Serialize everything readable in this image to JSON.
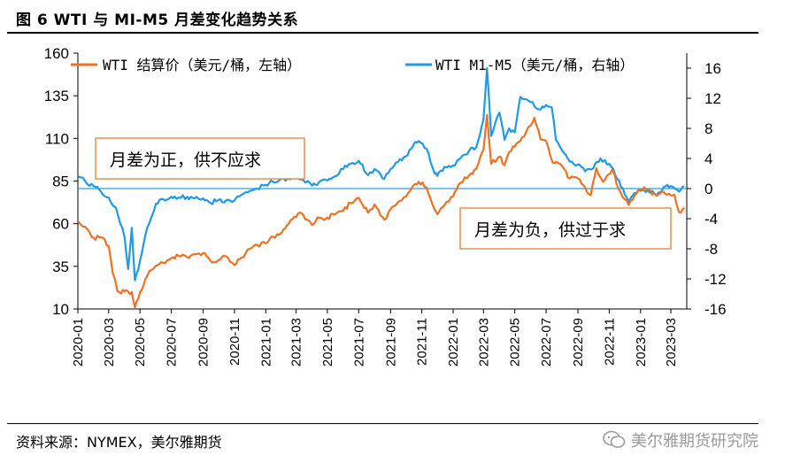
{
  "figure_title": "图 6   WTI 与 MI-M5 月差变化趋势关系",
  "source": "资料来源：NYMEX，美尔雅期货",
  "watermark": "美尔雅期货研究院",
  "colors": {
    "wti": "#f07122",
    "spread": "#1f9ae6",
    "zero_line": "#29a3e0",
    "annotation_border": "#e8914f"
  },
  "annotations": {
    "positive": "月差为正，供不应求",
    "negative": "月差为负，供过于求"
  },
  "chart_data": {
    "type": "line",
    "x_range": [
      "2020-01",
      "2023-04"
    ],
    "x_ticks": [
      "2020-01",
      "2020-03",
      "2020-05",
      "2020-07",
      "2020-09",
      "2020-11",
      "2021-01",
      "2021-03",
      "2021-05",
      "2021-07",
      "2021-09",
      "2021-11",
      "2022-01",
      "2022-03",
      "2022-05",
      "2022-07",
      "2022-09",
      "2022-11",
      "2023-01",
      "2023-03"
    ],
    "y_left": {
      "label": "WTI 结算价（美元/桶，左轴）",
      "range": [
        10,
        160
      ],
      "ticks": [
        10,
        35,
        60,
        85,
        110,
        135,
        160
      ]
    },
    "y_right": {
      "label": "WTI M1-M5（美元/桶，右轴）",
      "range": [
        -16,
        18
      ],
      "ticks": [
        -16,
        -12,
        -8,
        -4,
        0,
        4,
        8,
        12,
        16
      ]
    },
    "series": [
      {
        "name": "WTI 结算价（美元/桶，左轴）",
        "axis": "left",
        "points": [
          [
            "2020-01-02",
            61.2
          ],
          [
            "2020-01-15",
            58.2
          ],
          [
            "2020-02-01",
            51.6
          ],
          [
            "2020-02-15",
            52.1
          ],
          [
            "2020-03-01",
            47.0
          ],
          [
            "2020-03-09",
            31.1
          ],
          [
            "2020-03-18",
            20.4
          ],
          [
            "2020-04-01",
            20.3
          ],
          [
            "2020-04-15",
            19.9
          ],
          [
            "2020-04-21",
            11.0
          ],
          [
            "2020-05-01",
            19.8
          ],
          [
            "2020-05-15",
            29.4
          ],
          [
            "2020-06-01",
            35.4
          ],
          [
            "2020-06-15",
            37.1
          ],
          [
            "2020-07-01",
            39.8
          ],
          [
            "2020-07-15",
            41.2
          ],
          [
            "2020-08-01",
            40.3
          ],
          [
            "2020-08-15",
            42.0
          ],
          [
            "2020-09-01",
            42.8
          ],
          [
            "2020-09-15",
            38.3
          ],
          [
            "2020-10-01",
            38.7
          ],
          [
            "2020-10-15",
            40.9
          ],
          [
            "2020-11-01",
            35.8
          ],
          [
            "2020-11-15",
            40.1
          ],
          [
            "2020-12-01",
            45.3
          ],
          [
            "2020-12-15",
            47.6
          ],
          [
            "2021-01-01",
            48.5
          ],
          [
            "2021-01-15",
            52.4
          ],
          [
            "2021-02-01",
            54.8
          ],
          [
            "2021-02-15",
            60.1
          ],
          [
            "2021-03-05",
            66.1
          ],
          [
            "2021-03-15",
            65.0
          ],
          [
            "2021-04-01",
            59.3
          ],
          [
            "2021-04-15",
            63.5
          ],
          [
            "2021-05-01",
            63.6
          ],
          [
            "2021-05-15",
            65.4
          ],
          [
            "2021-06-01",
            67.7
          ],
          [
            "2021-06-15",
            72.1
          ],
          [
            "2021-07-01",
            75.2
          ],
          [
            "2021-07-19",
            66.4
          ],
          [
            "2021-08-01",
            71.3
          ],
          [
            "2021-08-20",
            62.3
          ],
          [
            "2021-09-01",
            68.6
          ],
          [
            "2021-09-15",
            72.6
          ],
          [
            "2021-10-01",
            75.9
          ],
          [
            "2021-10-15",
            82.3
          ],
          [
            "2021-10-26",
            84.6
          ],
          [
            "2021-11-10",
            81.3
          ],
          [
            "2021-11-26",
            68.2
          ],
          [
            "2021-12-01",
            65.6
          ],
          [
            "2021-12-15",
            70.9
          ],
          [
            "2022-01-01",
            76.1
          ],
          [
            "2022-01-15",
            84.0
          ],
          [
            "2022-02-01",
            88.2
          ],
          [
            "2022-02-15",
            92.1
          ],
          [
            "2022-03-01",
            103.4
          ],
          [
            "2022-03-08",
            123.7
          ],
          [
            "2022-03-16",
            95.0
          ],
          [
            "2022-04-01",
            99.3
          ],
          [
            "2022-04-11",
            94.3
          ],
          [
            "2022-04-20",
            102.0
          ],
          [
            "2022-05-01",
            105.2
          ],
          [
            "2022-05-15",
            110.5
          ],
          [
            "2022-06-08",
            122.1
          ],
          [
            "2022-06-20",
            109.6
          ],
          [
            "2022-07-01",
            108.4
          ],
          [
            "2022-07-14",
            95.8
          ],
          [
            "2022-08-01",
            93.9
          ],
          [
            "2022-08-16",
            86.5
          ],
          [
            "2022-09-01",
            86.6
          ],
          [
            "2022-09-26",
            76.7
          ],
          [
            "2022-10-07",
            92.6
          ],
          [
            "2022-10-20",
            84.5
          ],
          [
            "2022-11-07",
            91.8
          ],
          [
            "2022-11-20",
            80.1
          ],
          [
            "2022-12-09",
            71.0
          ],
          [
            "2022-12-20",
            76.2
          ],
          [
            "2023-01-01",
            80.3
          ],
          [
            "2023-01-15",
            79.9
          ],
          [
            "2023-02-01",
            76.4
          ],
          [
            "2023-02-15",
            78.6
          ],
          [
            "2023-03-08",
            77.0
          ],
          [
            "2023-03-17",
            66.7
          ],
          [
            "2023-03-27",
            69.3
          ]
        ]
      },
      {
        "name": "WTI M1-M5（美元/桶，右轴）",
        "axis": "right",
        "points": [
          [
            "2020-01-02",
            1.6
          ],
          [
            "2020-01-15",
            1.0
          ],
          [
            "2020-02-01",
            0.3
          ],
          [
            "2020-02-15",
            -0.4
          ],
          [
            "2020-03-01",
            -1.2
          ],
          [
            "2020-03-15",
            -2.5
          ],
          [
            "2020-04-01",
            -6.5
          ],
          [
            "2020-04-08",
            -10.7
          ],
          [
            "2020-04-15",
            -5.2
          ],
          [
            "2020-04-21",
            -12.2
          ],
          [
            "2020-05-01",
            -9.6
          ],
          [
            "2020-05-15",
            -5.2
          ],
          [
            "2020-06-01",
            -2.0
          ],
          [
            "2020-06-15",
            -1.4
          ],
          [
            "2020-07-01",
            -1.1
          ],
          [
            "2020-07-15",
            -1.2
          ],
          [
            "2020-08-01",
            -1.1
          ],
          [
            "2020-08-15",
            -1.3
          ],
          [
            "2020-09-01",
            -1.3
          ],
          [
            "2020-09-15",
            -1.9
          ],
          [
            "2020-10-01",
            -1.5
          ],
          [
            "2020-10-15",
            -1.6
          ],
          [
            "2020-11-01",
            -1.6
          ],
          [
            "2020-11-15",
            -0.8
          ],
          [
            "2020-12-01",
            -0.3
          ],
          [
            "2020-12-15",
            0.0
          ],
          [
            "2021-01-01",
            0.5
          ],
          [
            "2021-01-15",
            0.9
          ],
          [
            "2021-02-01",
            1.3
          ],
          [
            "2021-02-15",
            1.3
          ],
          [
            "2021-03-01",
            1.5
          ],
          [
            "2021-03-15",
            1.1
          ],
          [
            "2021-04-01",
            0.4
          ],
          [
            "2021-04-15",
            0.9
          ],
          [
            "2021-05-01",
            1.1
          ],
          [
            "2021-05-15",
            1.6
          ],
          [
            "2021-06-01",
            2.6
          ],
          [
            "2021-06-15",
            3.3
          ],
          [
            "2021-07-01",
            3.7
          ],
          [
            "2021-07-19",
            1.8
          ],
          [
            "2021-08-01",
            2.6
          ],
          [
            "2021-08-20",
            1.3
          ],
          [
            "2021-09-01",
            2.6
          ],
          [
            "2021-09-15",
            3.5
          ],
          [
            "2021-10-01",
            4.3
          ],
          [
            "2021-10-15",
            5.7
          ],
          [
            "2021-10-26",
            6.3
          ],
          [
            "2021-11-10",
            5.3
          ],
          [
            "2021-11-26",
            2.0
          ],
          [
            "2021-12-01",
            1.7
          ],
          [
            "2021-12-15",
            2.9
          ],
          [
            "2022-01-01",
            3.1
          ],
          [
            "2022-01-15",
            4.0
          ],
          [
            "2022-02-01",
            5.0
          ],
          [
            "2022-02-15",
            5.5
          ],
          [
            "2022-03-01",
            9.2
          ],
          [
            "2022-03-08",
            16.0
          ],
          [
            "2022-03-16",
            7.0
          ],
          [
            "2022-04-01",
            10.1
          ],
          [
            "2022-04-11",
            6.5
          ],
          [
            "2022-04-20",
            8.0
          ],
          [
            "2022-05-01",
            7.5
          ],
          [
            "2022-05-12",
            12.2
          ],
          [
            "2022-06-01",
            11.5
          ],
          [
            "2022-06-20",
            10.5
          ],
          [
            "2022-07-01",
            11.1
          ],
          [
            "2022-07-12",
            10.8
          ],
          [
            "2022-07-20",
            6.5
          ],
          [
            "2022-08-01",
            5.1
          ],
          [
            "2022-08-16",
            3.6
          ],
          [
            "2022-09-01",
            3.2
          ],
          [
            "2022-09-15",
            2.3
          ],
          [
            "2022-10-01",
            2.7
          ],
          [
            "2022-10-15",
            4.0
          ],
          [
            "2022-11-01",
            3.3
          ],
          [
            "2022-11-20",
            1.1
          ],
          [
            "2022-12-09",
            -1.8
          ],
          [
            "2022-12-20",
            -0.6
          ],
          [
            "2023-01-01",
            -0.3
          ],
          [
            "2023-01-15",
            -0.2
          ],
          [
            "2023-02-01",
            -0.9
          ],
          [
            "2023-02-15",
            0.2
          ],
          [
            "2023-03-01",
            0.3
          ],
          [
            "2023-03-17",
            -0.4
          ],
          [
            "2023-03-27",
            0.3
          ]
        ]
      }
    ]
  }
}
